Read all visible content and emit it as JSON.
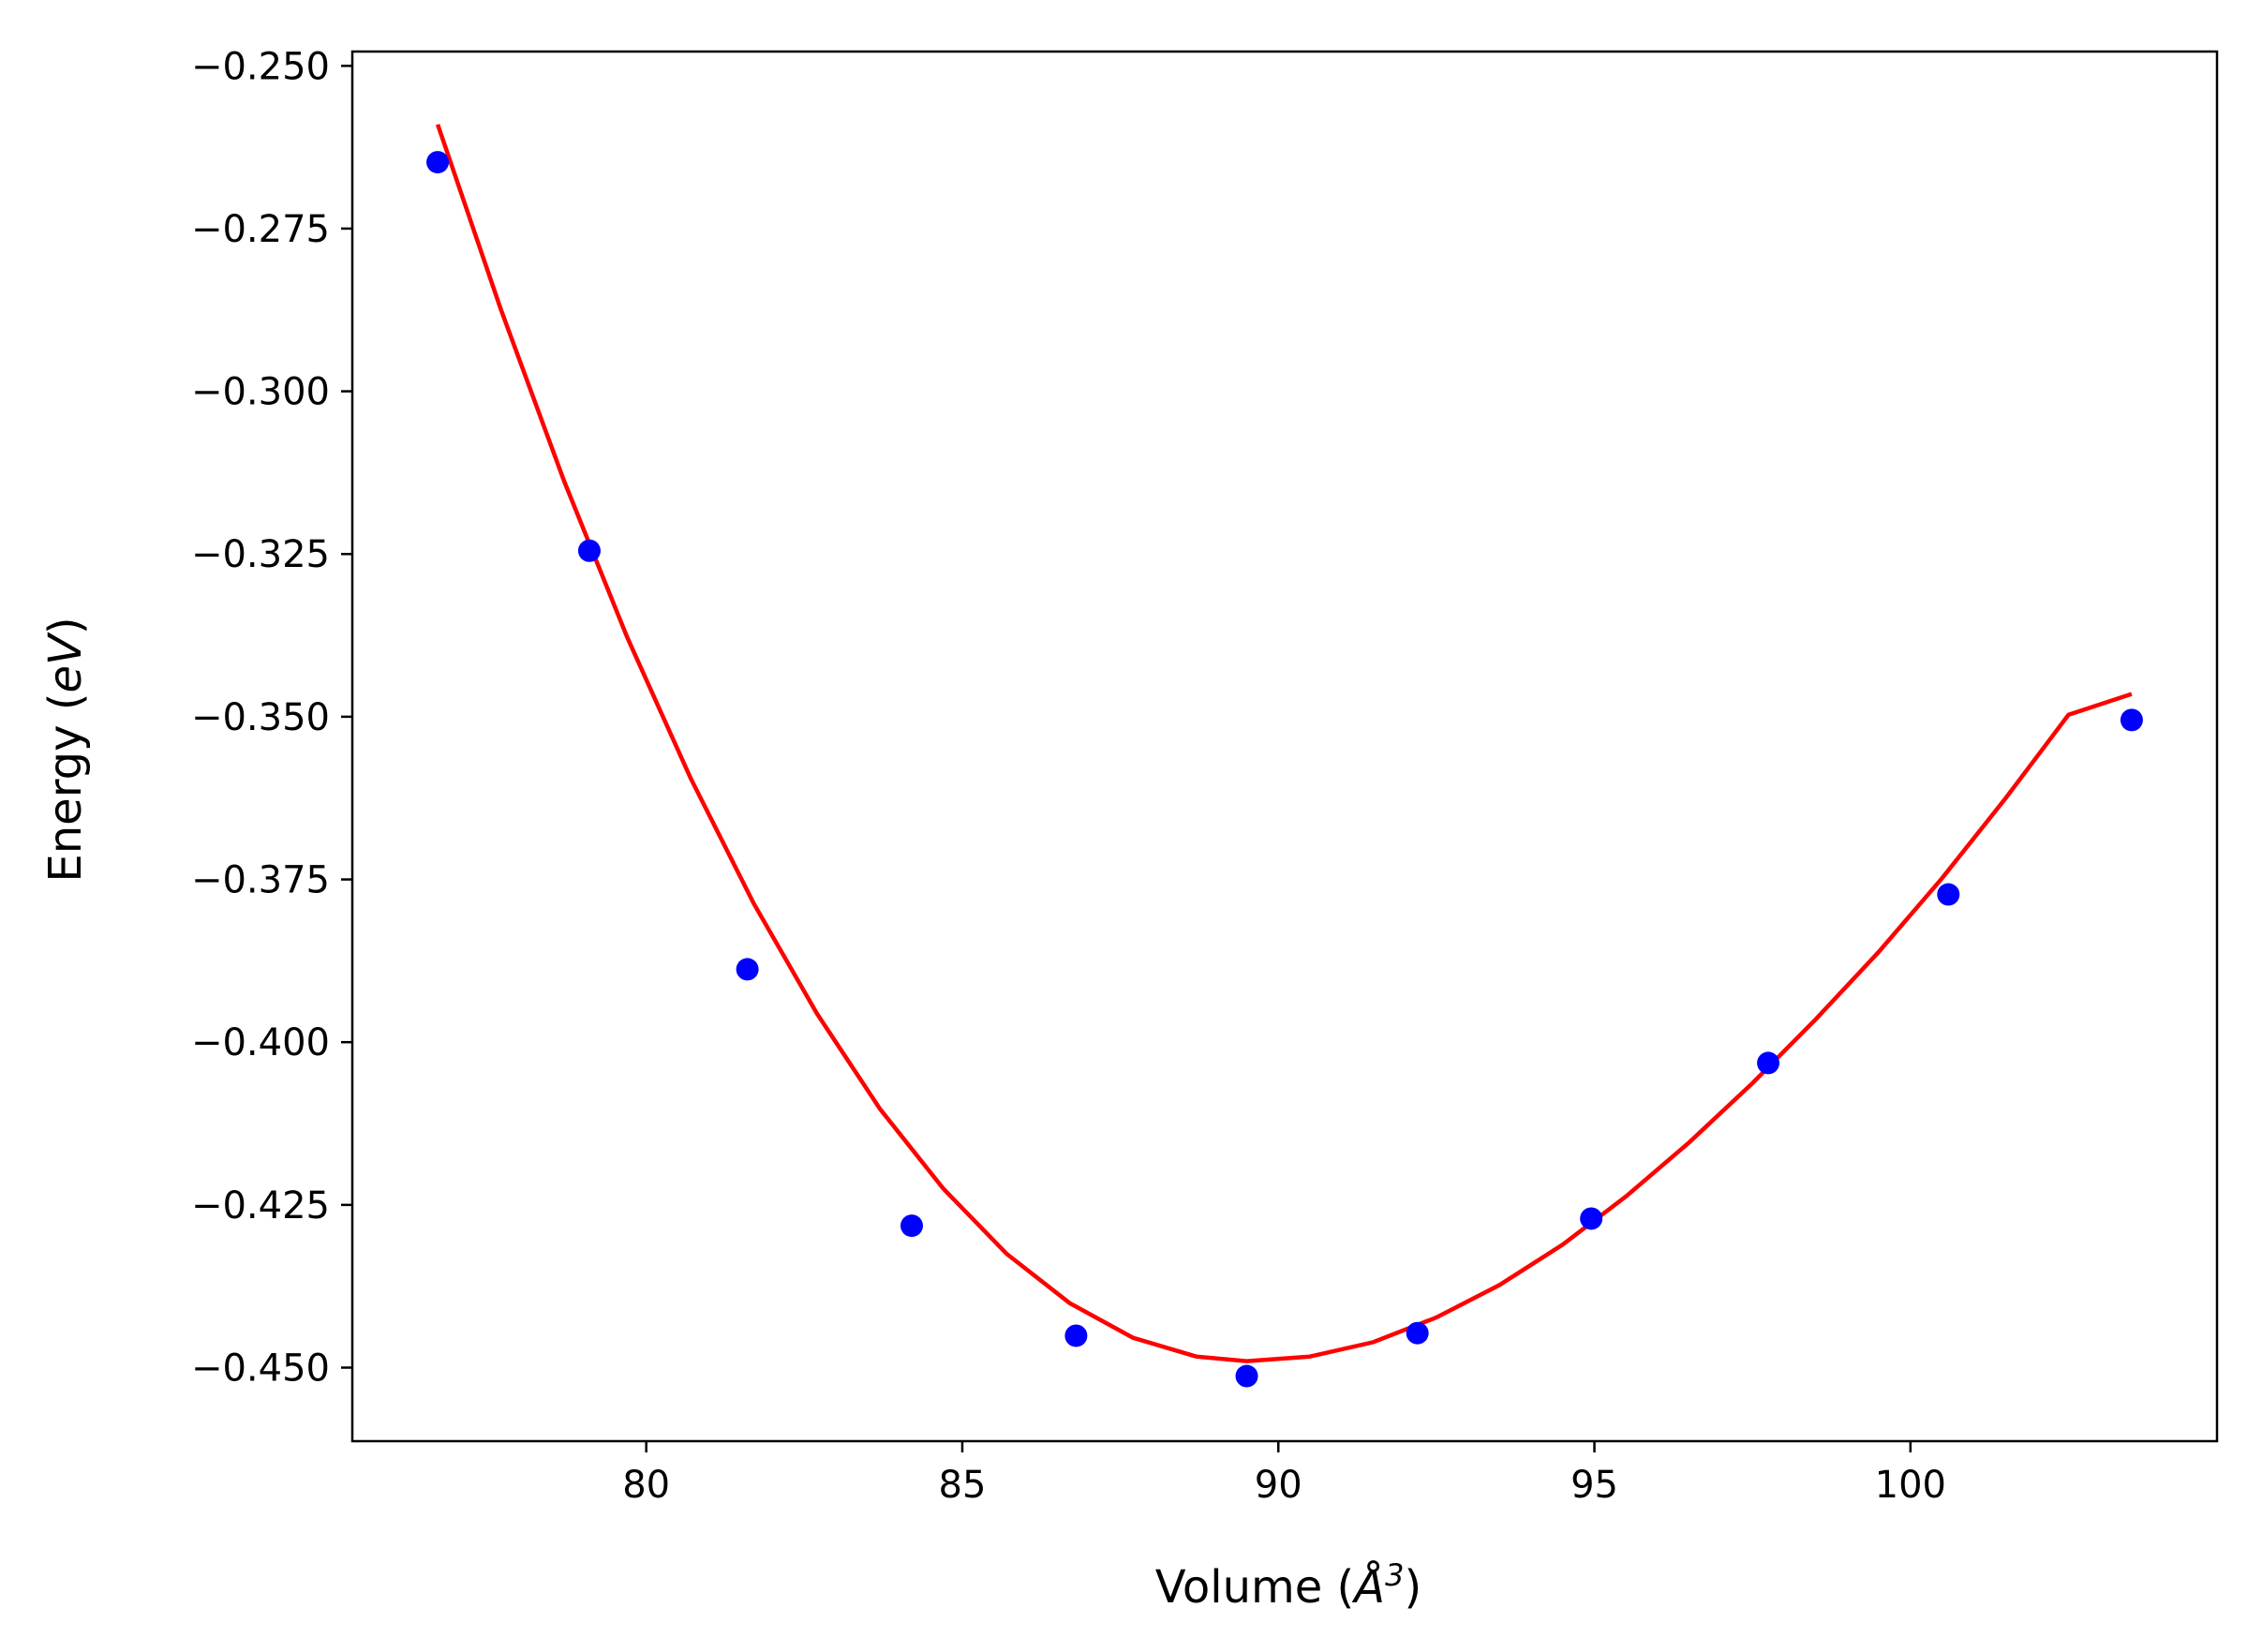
{
  "chart_data": {
    "type": "scatter",
    "xlabel": "Volume (",
    "xlabel_unit": "Å",
    "xlabel_unit_exponent": "3",
    "xlabel_close": ")",
    "ylabel": "Energy (",
    "ylabel_unit": "eV",
    "ylabel_close": ")",
    "xlim": [
      75.35,
      104.85
    ],
    "ylim": [
      -0.4613,
      -0.2478
    ],
    "x_ticks": [
      80,
      85,
      90,
      95,
      100
    ],
    "x_tick_labels": [
      "80",
      "85",
      "90",
      "95",
      "100"
    ],
    "y_ticks": [
      -0.25,
      -0.275,
      -0.3,
      -0.325,
      -0.35,
      -0.375,
      -0.4,
      -0.425,
      -0.45
    ],
    "y_tick_labels": [
      "−0.250",
      "−0.275",
      "−0.300",
      "−0.325",
      "−0.350",
      "−0.375",
      "−0.400",
      "−0.425",
      "−0.450"
    ],
    "grid": false,
    "series": [
      {
        "kind": "scatter",
        "color": "#0000ff",
        "x": [
          76.7,
          79.1,
          81.6,
          84.2,
          86.8,
          89.5,
          92.2,
          94.95,
          97.75,
          100.6,
          103.5
        ],
        "y": [
          -0.2648,
          -0.3245,
          -0.3888,
          -0.4282,
          -0.4451,
          -0.4513,
          -0.4447,
          -0.4271,
          -0.4032,
          -0.3773,
          -0.3505
        ]
      },
      {
        "kind": "fit-curve",
        "color": "#ff0000",
        "x": [
          76.7,
          77.7,
          78.7,
          79.7,
          80.7,
          81.7,
          82.7,
          83.7,
          84.7,
          85.7,
          86.7,
          87.7,
          88.7,
          89.5,
          90.5,
          91.5,
          92.5,
          93.5,
          94.5,
          95.5,
          96.5,
          97.5,
          98.5,
          99.5,
          100.5,
          101.5,
          102.5,
          103.5
        ],
        "y": [
          -0.259,
          -0.2874,
          -0.3138,
          -0.3378,
          -0.3594,
          -0.3787,
          -0.3956,
          -0.4103,
          -0.4225,
          -0.4325,
          -0.4401,
          -0.4454,
          -0.4483,
          -0.449,
          -0.4483,
          -0.4461,
          -0.4423,
          -0.4373,
          -0.4311,
          -0.4237,
          -0.4154,
          -0.4063,
          -0.3965,
          -0.3861,
          -0.3748,
          -0.3626,
          -0.3497,
          -0.3465
        ]
      }
    ]
  }
}
